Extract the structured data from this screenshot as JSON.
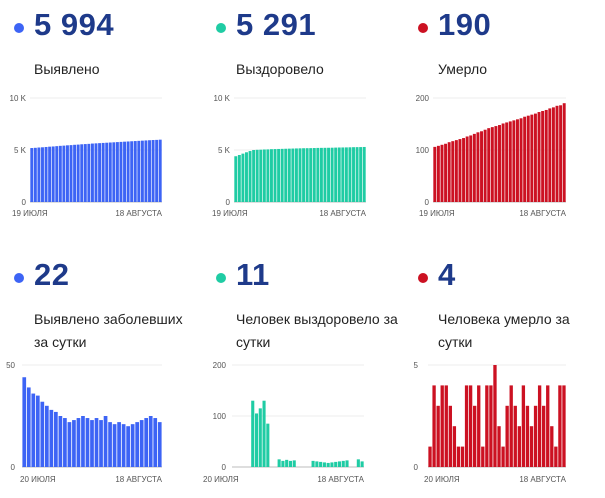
{
  "palette": {
    "blue": "#3d64f5",
    "teal": "#1fcca4",
    "red": "#cc1122"
  },
  "panels": [
    {
      "big": "5 994",
      "label": "Выявлено",
      "color": "#3d64f5"
    },
    {
      "big": "5 291",
      "label": "Выздоровело",
      "color": "#1fcca4"
    },
    {
      "big": "190",
      "label": "Умерло",
      "color": "#cc1122"
    },
    {
      "big": "22",
      "label": "Выявлено заболевших за сутки",
      "color": "#3d64f5"
    },
    {
      "big": "11",
      "label": "Человек выздоровело за сутки",
      "color": "#1fcca4"
    },
    {
      "big": "4",
      "label": "Человека умерло за сутки",
      "color": "#cc1122"
    }
  ],
  "chart_data": [
    {
      "type": "bar",
      "title": "",
      "color": "#3d64f5",
      "ylim": [
        0,
        10000
      ],
      "yticks": [
        0,
        5000,
        10000
      ],
      "ytick_labels": [
        "0",
        "5 K",
        "10 K"
      ],
      "xtick_labels": [
        "19 ИЮЛЯ",
        "18 АВГУСТА"
      ],
      "values": [
        5190,
        5210,
        5240,
        5260,
        5290,
        5320,
        5340,
        5370,
        5400,
        5420,
        5450,
        5470,
        5500,
        5520,
        5550,
        5570,
        5590,
        5620,
        5640,
        5660,
        5680,
        5700,
        5720,
        5740,
        5760,
        5780,
        5800,
        5820,
        5840,
        5860,
        5880,
        5900,
        5920,
        5940,
        5960,
        5972,
        5994
      ]
    },
    {
      "type": "bar",
      "title": "",
      "color": "#1fcca4",
      "ylim": [
        0,
        10000
      ],
      "yticks": [
        0,
        5000,
        10000
      ],
      "ytick_labels": [
        "0",
        "5 K",
        "10 K"
      ],
      "xtick_labels": [
        "19 ИЮЛЯ",
        "18 АВГУСТА"
      ],
      "values": [
        4400,
        4520,
        4650,
        4780,
        4900,
        5000,
        5020,
        5030,
        5050,
        5060,
        5080,
        5090,
        5100,
        5110,
        5120,
        5130,
        5140,
        5150,
        5160,
        5170,
        5175,
        5180,
        5190,
        5200,
        5205,
        5210,
        5215,
        5220,
        5230,
        5240,
        5245,
        5250,
        5260,
        5270,
        5275,
        5280,
        5291
      ]
    },
    {
      "type": "bar",
      "title": "",
      "color": "#cc1122",
      "ylim": [
        0,
        200
      ],
      "yticks": [
        0,
        100,
        200
      ],
      "ytick_labels": [
        "0",
        "100",
        "200"
      ],
      "xtick_labels": [
        "19 ИЮЛЯ",
        "18 АВГУСТА"
      ],
      "values": [
        106,
        108,
        110,
        112,
        115,
        117,
        119,
        121,
        123,
        126,
        128,
        131,
        134,
        136,
        139,
        142,
        144,
        146,
        148,
        151,
        153,
        155,
        157,
        159,
        161,
        164,
        166,
        168,
        170,
        173,
        175,
        177,
        180,
        182,
        185,
        186,
        190
      ]
    },
    {
      "type": "bar",
      "title": "",
      "color": "#3d64f5",
      "ylim": [
        0,
        50
      ],
      "yticks": [
        0,
        50
      ],
      "ytick_labels": [
        "0",
        "50"
      ],
      "xtick_labels": [
        "20 ИЮЛЯ",
        "18 АВГУСТА"
      ],
      "values": [
        44,
        39,
        36,
        35,
        32,
        30,
        28,
        27,
        25,
        24,
        22,
        23,
        24,
        25,
        24,
        23,
        24,
        23,
        25,
        22,
        21,
        22,
        21,
        20,
        21,
        22,
        23,
        24,
        25,
        24,
        22
      ]
    },
    {
      "type": "bar",
      "title": "",
      "color": "#1fcca4",
      "ylim": [
        0,
        200
      ],
      "yticks": [
        0,
        100,
        200
      ],
      "ytick_labels": [
        "0",
        "100",
        "200"
      ],
      "xtick_labels": [
        "20 ИЮЛЯ",
        "18 АВГУСТА"
      ],
      "values": [
        0,
        0,
        0,
        0,
        0,
        130,
        105,
        115,
        130,
        85,
        0,
        0,
        15,
        12,
        14,
        12,
        13,
        0,
        0,
        0,
        0,
        12,
        11,
        10,
        9,
        8,
        9,
        10,
        11,
        12,
        13,
        0,
        0,
        15,
        11
      ]
    },
    {
      "type": "bar",
      "title": "",
      "color": "#cc1122",
      "ylim": [
        0,
        5
      ],
      "yticks": [
        0,
        5
      ],
      "ytick_labels": [
        "0",
        "5"
      ],
      "xtick_labels": [
        "20 ИЮЛЯ",
        "18 АВГУСТА"
      ],
      "values": [
        1,
        4,
        3,
        4,
        4,
        3,
        2,
        1,
        1,
        4,
        4,
        3,
        4,
        1,
        4,
        4,
        5,
        2,
        1,
        3,
        4,
        3,
        2,
        4,
        3,
        2,
        3,
        4,
        3,
        4,
        2,
        1,
        4,
        4
      ]
    }
  ]
}
